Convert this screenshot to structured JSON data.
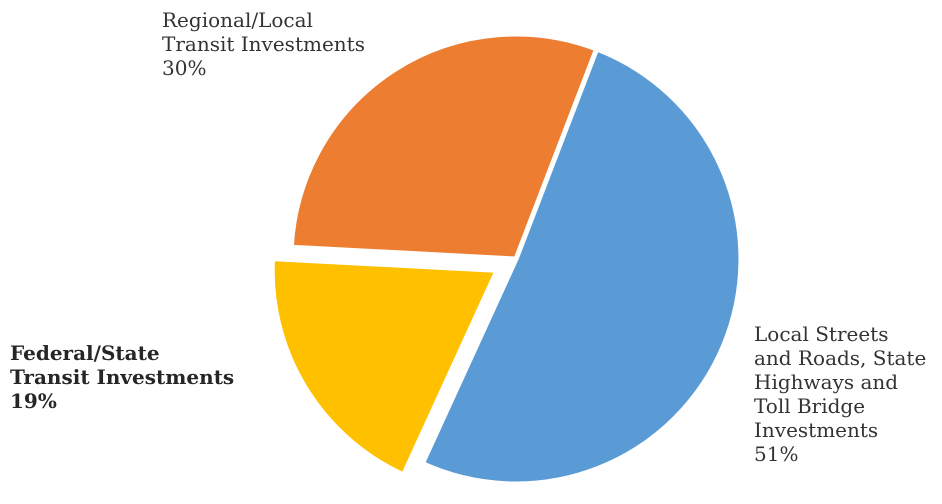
{
  "chart_data": {
    "type": "pie",
    "title": "",
    "slices": [
      {
        "label_lines": [
          "Local Streets",
          "and Roads, State",
          "Highways and",
          "Toll Bridge",
          "Investments"
        ],
        "label": "Local Streets and Roads, State Highways and Toll Bridge Investments",
        "value": 51,
        "value_label": "51%",
        "color": "#5B9BD5",
        "exploded": false
      },
      {
        "label_lines": [
          "Federal/State",
          "Transit Investments"
        ],
        "label": "Federal/State Transit Investments",
        "value": 19,
        "value_label": "19%",
        "color": "#FFC000",
        "exploded": true,
        "bold": true
      },
      {
        "label_lines": [
          "Regional/Local",
          "Transit Investments"
        ],
        "label": "Regional/Local Transit Investments",
        "value": 30,
        "value_label": "30%",
        "color": "#ED7D31",
        "exploded": false
      }
    ],
    "start_angle_deg": 21,
    "direction": "clockwise",
    "legend": "none"
  }
}
